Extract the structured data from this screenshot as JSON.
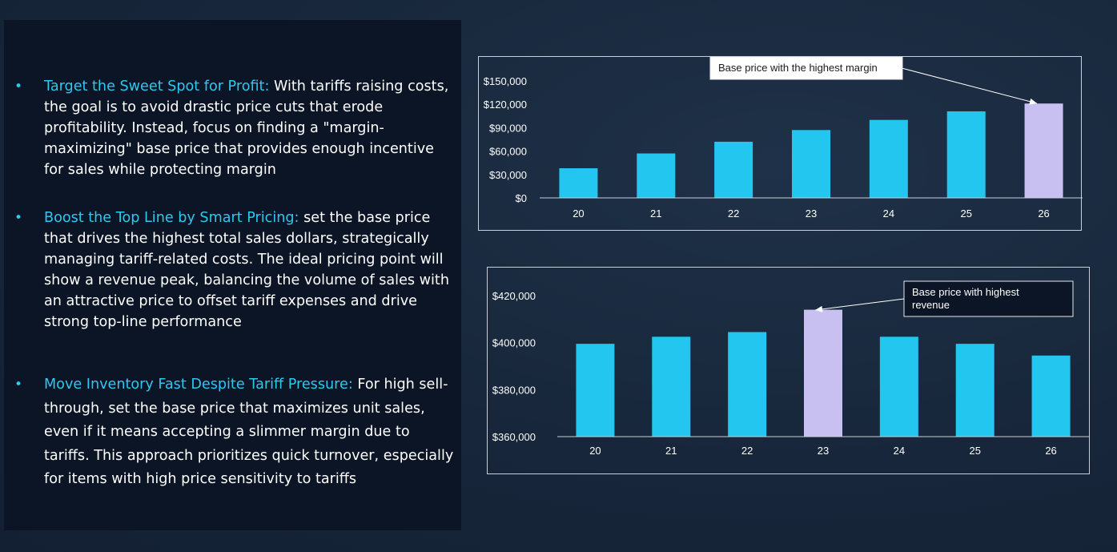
{
  "bullets": [
    {
      "heading": "Target the Sweet Spot for Profit:",
      "text": " With tariffs raising costs, the goal is to avoid drastic price cuts that erode profitability. Instead, focus on finding a \"margin-maximizing\" base price that provides enough incentive for sales while protecting margin"
    },
    {
      "heading": "Boost the Top Line by Smart Pricing:",
      "text": " set the base price that drives the highest total sales dollars, strategically managing tariff-related costs. The ideal pricing point will show a revenue peak, balancing the volume of sales with an attractive price to offset tariff expenses and drive strong top-line performance"
    },
    {
      "heading": "Move Inventory Fast Despite Tariff Pressure:",
      "text": " For high sell-through, set the base price that maximizes unit sales, even if it means accepting a slimmer margin due to tariffs. This approach prioritizes quick turnover, especially for items with high price sensitivity to tariffs"
    }
  ],
  "colors": {
    "bar": "#22c6ee",
    "highlight": "#c9c0f2",
    "accent": "#2ec8ee"
  },
  "chart_data": [
    {
      "type": "bar",
      "categories": [
        "20",
        "21",
        "22",
        "23",
        "24",
        "25",
        "26"
      ],
      "values": [
        38000,
        57000,
        72000,
        87000,
        100000,
        111000,
        121000
      ],
      "ylim": [
        0,
        150000
      ],
      "yticks": [
        0,
        30000,
        60000,
        90000,
        120000,
        150000
      ],
      "ytick_labels": [
        "$0",
        "$30,000",
        "$60,000",
        "$90,000",
        "$120,000",
        "$150,000"
      ],
      "highlight_index": 6,
      "annotation": "Base price with the highest margin",
      "grid": false
    },
    {
      "type": "bar",
      "categories": [
        "20",
        "21",
        "22",
        "23",
        "24",
        "25",
        "26"
      ],
      "values": [
        399500,
        402500,
        404500,
        414000,
        402500,
        399500,
        394500
      ],
      "ylim": [
        360000,
        420000
      ],
      "yticks": [
        360000,
        380000,
        400000,
        420000
      ],
      "ytick_labels": [
        "$360,000",
        "$380,000",
        "$400,000",
        "$420,000"
      ],
      "highlight_index": 3,
      "annotation": "Base price with highest revenue",
      "grid": false
    }
  ]
}
